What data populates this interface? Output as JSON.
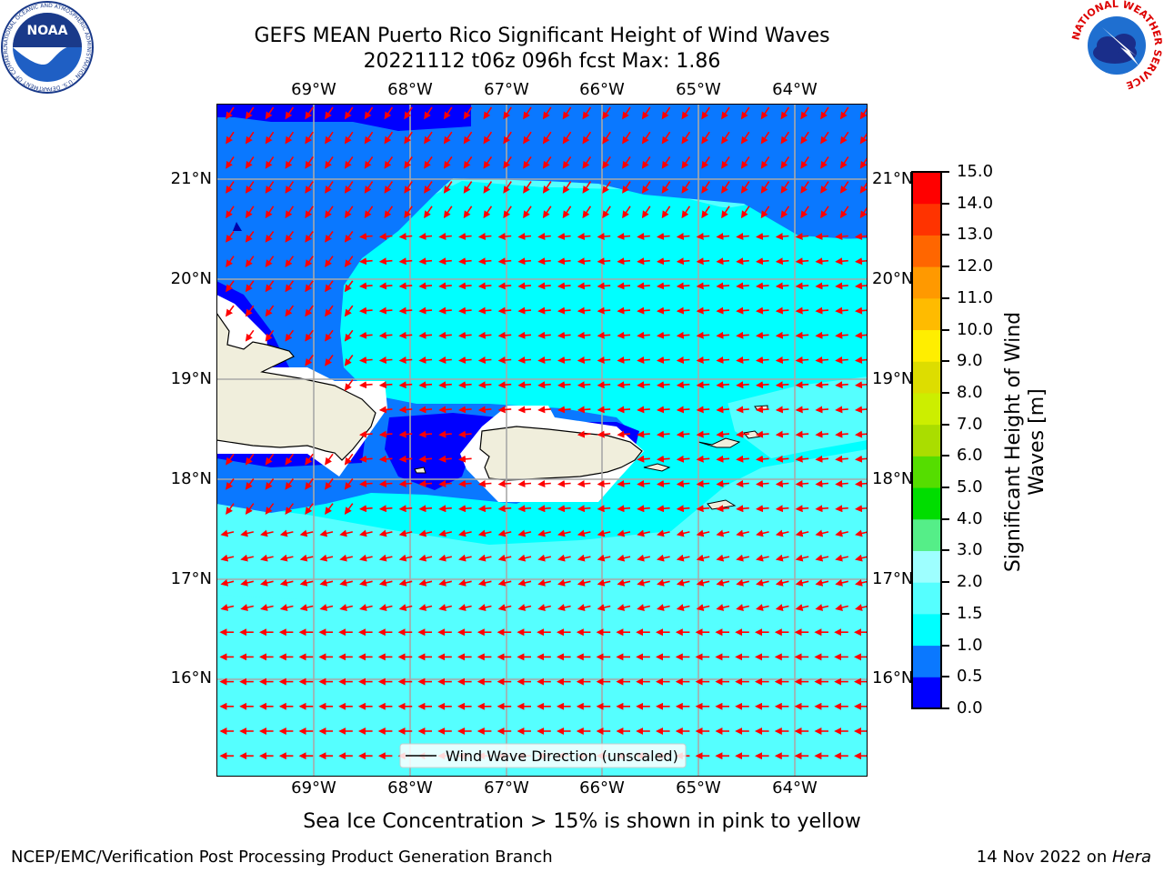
{
  "header": {
    "title_line1": "GEFS MEAN Puerto Rico Significant Height of Wind Waves",
    "title_line2": "20221112 t06z 096h fcst   Max: 1.86"
  },
  "logos": {
    "noaa_text": "NOAA",
    "noaa_ring_text": "NATIONAL OCEANIC AND ATMOSPHERIC ADMINISTRATION · U.S. DEPARTMENT OF COMMERCE",
    "nws_ring_text": "NATIONAL WEATHER SERVICE"
  },
  "map": {
    "lon_labels": [
      "69°W",
      "68°W",
      "67°W",
      "66°W",
      "65°W",
      "64°W"
    ],
    "lat_labels": [
      "21°N",
      "20°N",
      "19°N",
      "18°N",
      "17°N",
      "16°N"
    ],
    "legend_label": "Wind Wave Direction (unscaled)",
    "arrow_color": "#ff0000",
    "land_color": "#f0eedc"
  },
  "colorbar": {
    "label": "Significant Height of Wind Waves [m]",
    "ticks": [
      "0.0",
      "0.5",
      "1.0",
      "1.5",
      "2.0",
      "3.0",
      "4.0",
      "5.0",
      "6.0",
      "7.0",
      "8.0",
      "9.0",
      "10.0",
      "11.0",
      "12.0",
      "13.0",
      "14.0",
      "15.0"
    ],
    "colors": [
      "#0000ff",
      "#0a78ff",
      "#00ffff",
      "#55ffff",
      "#9effff",
      "#55ee88",
      "#00dd00",
      "#55dd00",
      "#aadd00",
      "#ccee00",
      "#dddd00",
      "#ffee00",
      "#ffbb00",
      "#ff9900",
      "#ff6600",
      "#ff3300",
      "#ff0000"
    ]
  },
  "footer": {
    "caption": "Sea Ice Concentration > 15% is shown in pink to yellow",
    "left": "NCEP/EMC/Verification Post Processing Product Generation Branch",
    "right_prefix": "14 Nov 2022 on ",
    "right_host": "Hera"
  }
}
